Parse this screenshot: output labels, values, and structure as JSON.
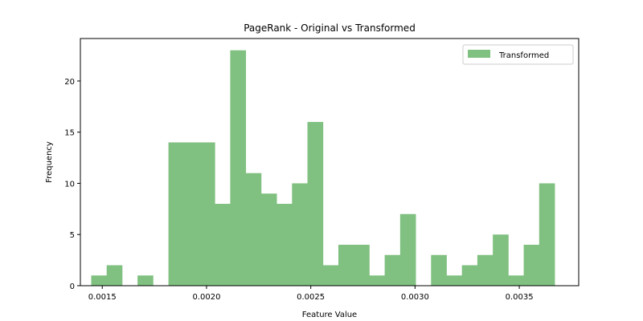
{
  "chart_data": {
    "type": "bar",
    "title": "PageRank - Original vs Transformed",
    "xlabel": "Feature Value",
    "ylabel": "Frequency",
    "xlim": [
      0.001395,
      0.003785
    ],
    "ylim": [
      0,
      24.15
    ],
    "bin_edges": [
      0.001447,
      0.0015211,
      0.0015952,
      0.0016692,
      0.0017433,
      0.0018174,
      0.0018915,
      0.0019656,
      0.0020396,
      0.0021137,
      0.0021878,
      0.0022619,
      0.002336,
      0.00241,
      0.0024841,
      0.0025582,
      0.0026323,
      0.0027064,
      0.0027804,
      0.0028545,
      0.0029286,
      0.0030027,
      0.0030768,
      0.0031508,
      0.0032249,
      0.003299,
      0.0033731,
      0.0034472,
      0.0035212,
      0.0035953,
      0.0036694
    ],
    "x_ticks": [
      0.0015,
      0.002,
      0.0025,
      0.003,
      0.0035
    ],
    "x_tick_labels": [
      "0.0015",
      "0.0020",
      "0.0025",
      "0.0030",
      "0.0035"
    ],
    "y_ticks": [
      0,
      5,
      10,
      15,
      20
    ],
    "y_tick_labels": [
      "0",
      "5",
      "10",
      "15",
      "20"
    ],
    "series": [
      {
        "name": "Transformed",
        "color": "#80c080",
        "values": [
          1,
          2,
          0,
          1,
          0,
          14,
          14,
          14,
          8,
          23,
          11,
          9,
          8,
          10,
          16,
          2,
          4,
          4,
          1,
          3,
          7,
          0,
          3,
          1,
          2,
          3,
          5,
          1,
          4,
          10
        ]
      }
    ],
    "legend": {
      "placement": "top-right"
    },
    "grid": false
  }
}
